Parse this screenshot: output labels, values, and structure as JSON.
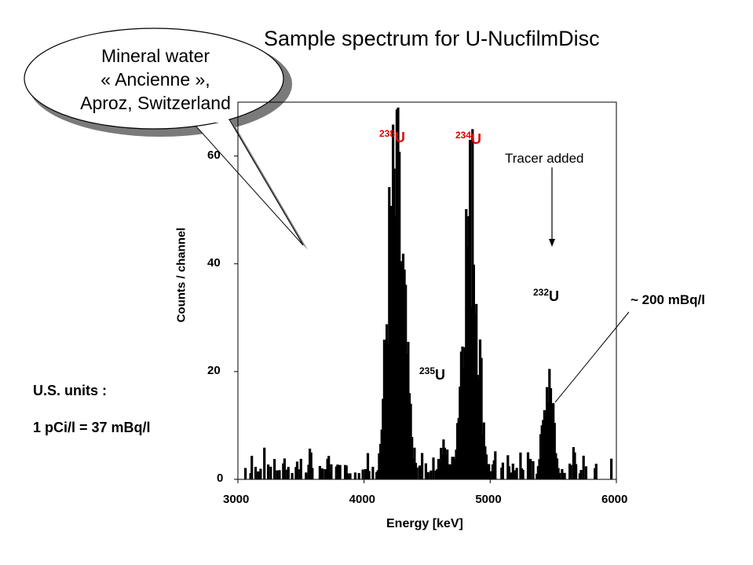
{
  "title": "Sample spectrum for U-NucfilmDisc",
  "callout": {
    "lines": [
      "Mineral water",
      "« Ancienne »,",
      "Aproz, Switzerland"
    ]
  },
  "units_note": {
    "heading": "U.S. units :",
    "conversion": "1 pCi/l = 37 mBq/l"
  },
  "annotations": {
    "tracer": "Tracer added",
    "activity": "~ 200 mBq/l"
  },
  "peaks": [
    {
      "mass": "238",
      "element": "U",
      "color": "#e00000"
    },
    {
      "mass": "234",
      "element": "U",
      "color": "#e00000"
    },
    {
      "mass": "235",
      "element": "U",
      "color": "#000000"
    },
    {
      "mass": "232",
      "element": "U",
      "color": "#000000"
    }
  ],
  "chart_data": {
    "type": "bar",
    "title": "Sample spectrum for U-NucfilmDisc",
    "xlabel": "Energy [keV]",
    "ylabel": "Counts / channel",
    "xlim": [
      3000,
      6000
    ],
    "ylim": [
      0,
      70
    ],
    "xticks": [
      "3000",
      "4000",
      "5000",
      "6000"
    ],
    "yticks": [
      "0",
      "20",
      "40",
      "60"
    ],
    "grid": false,
    "bar_color": "#000000",
    "peak_components": [
      {
        "center": 4270,
        "amplitude": 48,
        "width": 60
      },
      {
        "center": 4200,
        "amplitude": 20,
        "width": 40
      },
      {
        "center": 4630,
        "amplitude": 6,
        "width": 40
      },
      {
        "center": 4860,
        "amplitude": 42,
        "width": 55
      },
      {
        "center": 4800,
        "amplitude": 18,
        "width": 45
      },
      {
        "center": 5475,
        "amplitude": 21,
        "width": 30
      },
      {
        "center": 5420,
        "amplitude": 7,
        "width": 30
      }
    ],
    "highlighted_channels": [
      {
        "x": 4270,
        "y": 69
      },
      {
        "x": 4860,
        "y": 65
      },
      {
        "x": 5495,
        "y": 33
      }
    ]
  }
}
